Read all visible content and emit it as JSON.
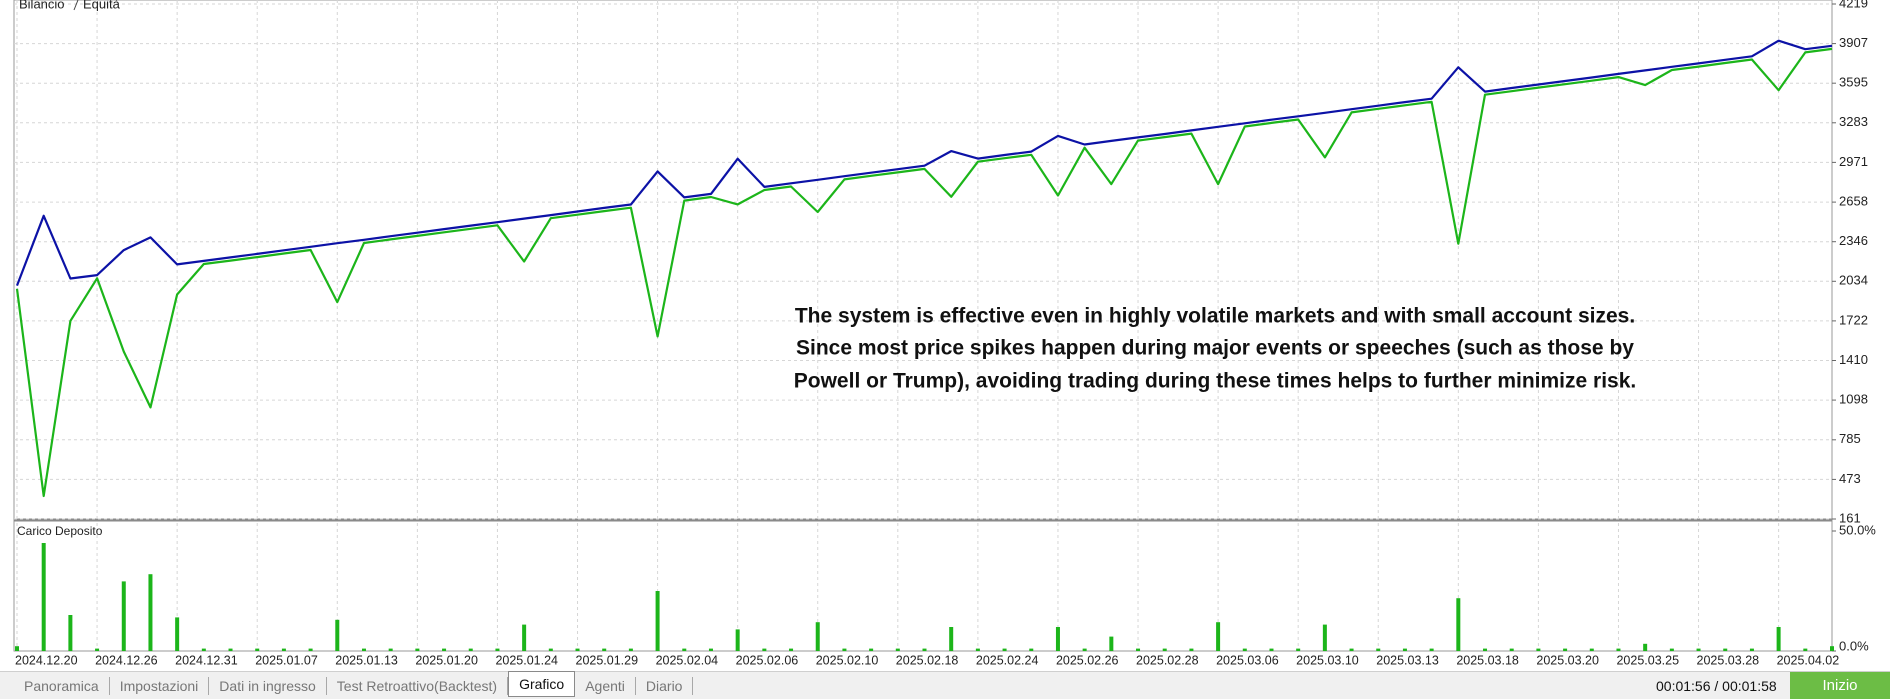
{
  "chart_data": {
    "type": "line",
    "categories": [
      "2024.12.20",
      null,
      null,
      "2024.12.26",
      null,
      null,
      "2024.12.31",
      null,
      null,
      "2025.01.07",
      null,
      null,
      "2025.01.13",
      null,
      null,
      "2025.01.20",
      null,
      null,
      "2025.01.24",
      null,
      null,
      "2025.01.29",
      null,
      null,
      "2025.02.04",
      null,
      null,
      "2025.02.06",
      null,
      null,
      "2025.02.10",
      null,
      null,
      "2025.02.18",
      null,
      null,
      "2025.02.24",
      null,
      null,
      "2025.02.26",
      null,
      null,
      "2025.02.28",
      null,
      null,
      "2025.03.06",
      null,
      null,
      "2025.03.10",
      null,
      null,
      "2025.03.13",
      null,
      null,
      "2025.03.18",
      null,
      null,
      "2025.03.20",
      null,
      null,
      "2025.03.25",
      null,
      null,
      "2025.03.28",
      null,
      null,
      "2025.04.02",
      null,
      null
    ],
    "series": [
      {
        "name": "Bilancio",
        "color": "#0c12a6",
        "values": [
          2000,
          2550,
          2056,
          2083,
          2280,
          2380,
          2167,
          2195,
          2222,
          2250,
          2278,
          2306,
          2334,
          2361,
          2389,
          2417,
          2445,
          2473,
          2500,
          2528,
          2556,
          2584,
          2612,
          2639,
          2900,
          2695,
          2723,
          3000,
          2778,
          2806,
          2834,
          2862,
          2890,
          2917,
          2945,
          3060,
          3001,
          3029,
          3056,
          3180,
          3112,
          3140,
          3168,
          3195,
          3223,
          3251,
          3279,
          3307,
          3334,
          3362,
          3390,
          3418,
          3446,
          3473,
          3720,
          3529,
          3557,
          3585,
          3612,
          3640,
          3668,
          3696,
          3724,
          3751,
          3779,
          3807,
          3930,
          3863,
          3890
        ]
      },
      {
        "name": "Equità",
        "color": "#1cb51a",
        "values": [
          1975,
          342,
          1722,
          2058,
          1480,
          1040,
          1930,
          2170,
          2197,
          2225,
          2253,
          2281,
          1870,
          2336,
          2364,
          2392,
          2420,
          2448,
          2475,
          2190,
          2531,
          2559,
          2587,
          2614,
          1600,
          2670,
          2698,
          2640,
          2753,
          2781,
          2580,
          2837,
          2865,
          2892,
          2920,
          2700,
          2976,
          3004,
          3031,
          2710,
          3087,
          2800,
          3143,
          3170,
          3198,
          2800,
          3254,
          3282,
          3309,
          3010,
          3365,
          3393,
          3421,
          3448,
          2330,
          3504,
          3532,
          3560,
          3587,
          3615,
          3643,
          3580,
          3699,
          3726,
          3754,
          3782,
          3540,
          3838,
          3865
        ]
      }
    ],
    "ylim": [
      161,
      4219
    ],
    "yticks": [
      161,
      473,
      785,
      1098,
      1410,
      1722,
      2034,
      2346,
      2658,
      2971,
      3283,
      3595,
      3907,
      4219
    ],
    "grid": true,
    "annotation": [
      "The system is effective even in highly volatile markets and with small account sizes.",
      "Since most price spikes happen during major events or speeches (such as those by",
      "Powell or Trump), avoiding trading during these times helps to further minimize risk."
    ],
    "lower_panel": {
      "type": "bar",
      "title": "Carico Deposito",
      "color": "#1cb51a",
      "values": [
        2,
        45,
        15,
        1,
        29,
        32,
        14,
        1,
        1,
        1,
        1,
        1,
        13,
        1,
        1,
        1,
        1,
        1,
        1,
        11,
        1,
        1,
        1,
        1,
        25,
        1,
        1,
        9,
        1,
        1,
        12,
        1,
        1,
        1,
        1,
        10,
        1,
        1,
        1,
        10,
        1,
        6,
        1,
        1,
        1,
        12,
        1,
        1,
        1,
        11,
        1,
        1,
        1,
        1,
        22,
        1,
        1,
        1,
        1,
        1,
        1,
        3,
        1,
        1,
        1,
        1,
        10,
        1,
        2
      ],
      "ylim": [
        0,
        50
      ],
      "yticks": [
        {
          "value": 0,
          "label": "0.0%"
        },
        {
          "value": 50,
          "label": "50.0%"
        }
      ]
    }
  },
  "ui": {
    "tabs": [
      "Panoramica",
      "Impostazioni",
      "Dati in ingresso",
      "Test Retroattivo(Backtest)",
      "Grafico",
      "Agenti",
      "Diario"
    ],
    "active_tab": 4,
    "timer": "00:01:56 / 00:01:58",
    "start_button": "Inizio"
  }
}
